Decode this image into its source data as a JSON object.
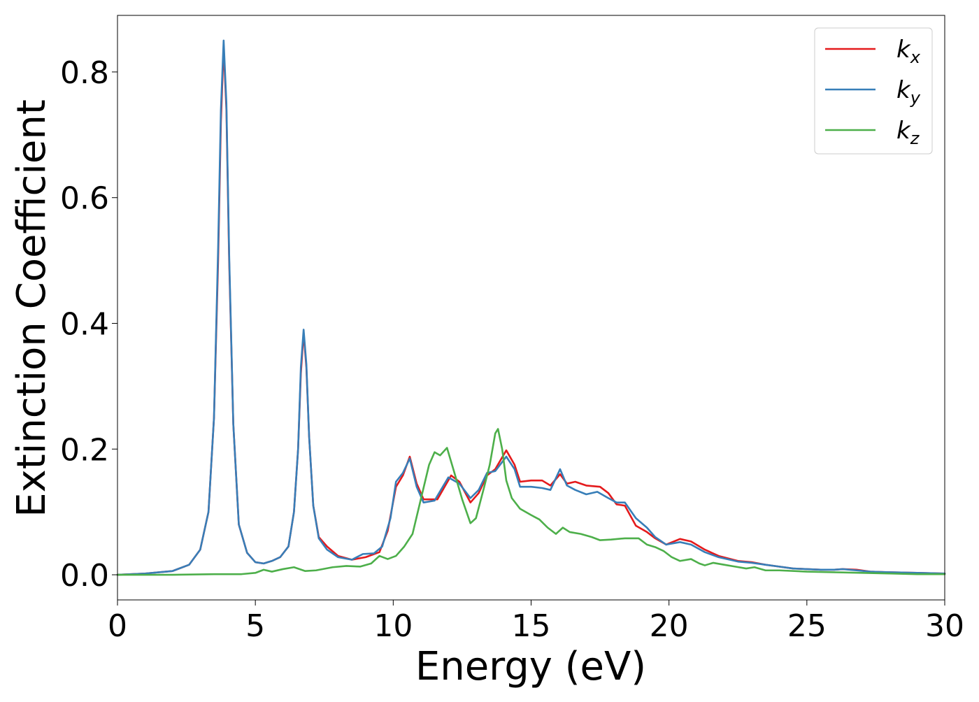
{
  "chart_data": {
    "type": "line",
    "title": "",
    "xlabel": "Energy (eV)",
    "ylabel": "Extinction Coefficient",
    "xlim": [
      0,
      30
    ],
    "ylim": [
      -0.04,
      0.89
    ],
    "x_ticks": [
      0,
      5,
      10,
      15,
      20,
      25,
      30
    ],
    "x_tick_labels": [
      "0",
      "5",
      "10",
      "15",
      "20",
      "25",
      "30"
    ],
    "y_ticks": [
      0.0,
      0.2,
      0.4,
      0.6,
      0.8
    ],
    "y_tick_labels": [
      "0.0",
      "0.2",
      "0.4",
      "0.6",
      "0.8"
    ],
    "grid": false,
    "legend_position": "top-right",
    "series": [
      {
        "name": "k_x",
        "label_base": "k",
        "label_sub": "x",
        "color": "#e41a1c",
        "points": [
          [
            0,
            0.0
          ],
          [
            1.0,
            0.002
          ],
          [
            2.0,
            0.006
          ],
          [
            2.6,
            0.016
          ],
          [
            3.0,
            0.04
          ],
          [
            3.3,
            0.1
          ],
          [
            3.5,
            0.25
          ],
          [
            3.65,
            0.5
          ],
          [
            3.75,
            0.72
          ],
          [
            3.85,
            0.84
          ],
          [
            3.95,
            0.74
          ],
          [
            4.05,
            0.5
          ],
          [
            4.2,
            0.24
          ],
          [
            4.4,
            0.08
          ],
          [
            4.7,
            0.035
          ],
          [
            5.0,
            0.02
          ],
          [
            5.3,
            0.018
          ],
          [
            5.6,
            0.022
          ],
          [
            5.9,
            0.028
          ],
          [
            6.2,
            0.045
          ],
          [
            6.4,
            0.1
          ],
          [
            6.55,
            0.2
          ],
          [
            6.65,
            0.32
          ],
          [
            6.75,
            0.385
          ],
          [
            6.85,
            0.33
          ],
          [
            6.95,
            0.22
          ],
          [
            7.1,
            0.11
          ],
          [
            7.3,
            0.06
          ],
          [
            7.6,
            0.045
          ],
          [
            8.0,
            0.03
          ],
          [
            8.5,
            0.024
          ],
          [
            9.0,
            0.028
          ],
          [
            9.5,
            0.036
          ],
          [
            9.8,
            0.07
          ],
          [
            10.1,
            0.14
          ],
          [
            10.35,
            0.158
          ],
          [
            10.6,
            0.188
          ],
          [
            10.85,
            0.145
          ],
          [
            11.1,
            0.12
          ],
          [
            11.6,
            0.12
          ],
          [
            12.1,
            0.158
          ],
          [
            12.4,
            0.148
          ],
          [
            12.8,
            0.115
          ],
          [
            13.1,
            0.13
          ],
          [
            13.4,
            0.158
          ],
          [
            13.7,
            0.168
          ],
          [
            14.1,
            0.198
          ],
          [
            14.4,
            0.175
          ],
          [
            14.6,
            0.148
          ],
          [
            15.0,
            0.15
          ],
          [
            15.4,
            0.15
          ],
          [
            15.7,
            0.142
          ],
          [
            16.05,
            0.16
          ],
          [
            16.3,
            0.145
          ],
          [
            16.6,
            0.148
          ],
          [
            17.0,
            0.142
          ],
          [
            17.5,
            0.14
          ],
          [
            17.8,
            0.13
          ],
          [
            18.1,
            0.112
          ],
          [
            18.4,
            0.11
          ],
          [
            18.8,
            0.078
          ],
          [
            19.2,
            0.068
          ],
          [
            19.5,
            0.058
          ],
          [
            19.9,
            0.048
          ],
          [
            20.4,
            0.057
          ],
          [
            20.8,
            0.053
          ],
          [
            21.3,
            0.04
          ],
          [
            21.8,
            0.03
          ],
          [
            22.5,
            0.022
          ],
          [
            23.0,
            0.02
          ],
          [
            23.5,
            0.016
          ],
          [
            24.0,
            0.013
          ],
          [
            24.5,
            0.01
          ],
          [
            25.0,
            0.009
          ],
          [
            25.5,
            0.008
          ],
          [
            26.0,
            0.008
          ],
          [
            26.3,
            0.009
          ],
          [
            26.8,
            0.008
          ],
          [
            27.3,
            0.005
          ],
          [
            28.0,
            0.004
          ],
          [
            29.0,
            0.003
          ],
          [
            30.0,
            0.002
          ]
        ]
      },
      {
        "name": "k_y",
        "label_base": "k",
        "label_sub": "y",
        "color": "#377eb8",
        "points": [
          [
            0,
            0.0
          ],
          [
            1.0,
            0.002
          ],
          [
            2.0,
            0.006
          ],
          [
            2.6,
            0.016
          ],
          [
            3.0,
            0.04
          ],
          [
            3.3,
            0.1
          ],
          [
            3.5,
            0.25
          ],
          [
            3.65,
            0.52
          ],
          [
            3.75,
            0.74
          ],
          [
            3.85,
            0.85
          ],
          [
            3.95,
            0.75
          ],
          [
            4.05,
            0.51
          ],
          [
            4.2,
            0.24
          ],
          [
            4.4,
            0.08
          ],
          [
            4.7,
            0.035
          ],
          [
            5.0,
            0.02
          ],
          [
            5.3,
            0.018
          ],
          [
            5.6,
            0.022
          ],
          [
            5.9,
            0.028
          ],
          [
            6.2,
            0.045
          ],
          [
            6.4,
            0.1
          ],
          [
            6.55,
            0.2
          ],
          [
            6.65,
            0.33
          ],
          [
            6.75,
            0.39
          ],
          [
            6.85,
            0.335
          ],
          [
            6.95,
            0.22
          ],
          [
            7.1,
            0.11
          ],
          [
            7.3,
            0.058
          ],
          [
            7.6,
            0.04
          ],
          [
            8.0,
            0.028
          ],
          [
            8.5,
            0.024
          ],
          [
            8.9,
            0.033
          ],
          [
            9.3,
            0.034
          ],
          [
            9.6,
            0.045
          ],
          [
            9.9,
            0.09
          ],
          [
            10.1,
            0.148
          ],
          [
            10.35,
            0.162
          ],
          [
            10.6,
            0.185
          ],
          [
            10.85,
            0.14
          ],
          [
            11.1,
            0.115
          ],
          [
            11.5,
            0.118
          ],
          [
            12.0,
            0.155
          ],
          [
            12.4,
            0.145
          ],
          [
            12.8,
            0.122
          ],
          [
            13.1,
            0.135
          ],
          [
            13.4,
            0.162
          ],
          [
            13.7,
            0.165
          ],
          [
            14.1,
            0.188
          ],
          [
            14.4,
            0.168
          ],
          [
            14.6,
            0.14
          ],
          [
            15.0,
            0.14
          ],
          [
            15.4,
            0.138
          ],
          [
            15.7,
            0.135
          ],
          [
            16.05,
            0.168
          ],
          [
            16.3,
            0.142
          ],
          [
            16.6,
            0.135
          ],
          [
            17.0,
            0.128
          ],
          [
            17.4,
            0.132
          ],
          [
            17.8,
            0.122
          ],
          [
            18.1,
            0.115
          ],
          [
            18.4,
            0.115
          ],
          [
            18.8,
            0.09
          ],
          [
            19.2,
            0.075
          ],
          [
            19.5,
            0.06
          ],
          [
            19.9,
            0.048
          ],
          [
            20.4,
            0.052
          ],
          [
            20.8,
            0.048
          ],
          [
            21.3,
            0.036
          ],
          [
            21.8,
            0.028
          ],
          [
            22.5,
            0.021
          ],
          [
            23.0,
            0.019
          ],
          [
            23.5,
            0.016
          ],
          [
            24.0,
            0.013
          ],
          [
            24.5,
            0.01
          ],
          [
            25.0,
            0.009
          ],
          [
            25.5,
            0.008
          ],
          [
            26.0,
            0.008
          ],
          [
            26.3,
            0.009
          ],
          [
            26.8,
            0.007
          ],
          [
            27.3,
            0.005
          ],
          [
            28.0,
            0.004
          ],
          [
            29.0,
            0.003
          ],
          [
            30.0,
            0.002
          ]
        ]
      },
      {
        "name": "k_z",
        "label_base": "k",
        "label_sub": "z",
        "color": "#4daf4a",
        "points": [
          [
            0,
            0.0
          ],
          [
            2.0,
            0.0
          ],
          [
            3.5,
            0.001
          ],
          [
            4.5,
            0.001
          ],
          [
            5.0,
            0.003
          ],
          [
            5.3,
            0.008
          ],
          [
            5.6,
            0.005
          ],
          [
            6.0,
            0.009
          ],
          [
            6.4,
            0.012
          ],
          [
            6.8,
            0.006
          ],
          [
            7.2,
            0.007
          ],
          [
            7.8,
            0.012
          ],
          [
            8.3,
            0.014
          ],
          [
            8.8,
            0.013
          ],
          [
            9.2,
            0.018
          ],
          [
            9.5,
            0.03
          ],
          [
            9.8,
            0.025
          ],
          [
            10.1,
            0.03
          ],
          [
            10.4,
            0.045
          ],
          [
            10.7,
            0.065
          ],
          [
            11.0,
            0.12
          ],
          [
            11.3,
            0.175
          ],
          [
            11.5,
            0.195
          ],
          [
            11.7,
            0.19
          ],
          [
            11.95,
            0.202
          ],
          [
            12.2,
            0.165
          ],
          [
            12.5,
            0.12
          ],
          [
            12.8,
            0.082
          ],
          [
            13.0,
            0.09
          ],
          [
            13.3,
            0.14
          ],
          [
            13.5,
            0.175
          ],
          [
            13.7,
            0.225
          ],
          [
            13.8,
            0.232
          ],
          [
            13.95,
            0.2
          ],
          [
            14.1,
            0.15
          ],
          [
            14.3,
            0.122
          ],
          [
            14.6,
            0.105
          ],
          [
            15.0,
            0.095
          ],
          [
            15.3,
            0.088
          ],
          [
            15.6,
            0.075
          ],
          [
            15.9,
            0.065
          ],
          [
            16.15,
            0.075
          ],
          [
            16.4,
            0.068
          ],
          [
            16.8,
            0.065
          ],
          [
            17.2,
            0.06
          ],
          [
            17.5,
            0.055
          ],
          [
            17.9,
            0.056
          ],
          [
            18.4,
            0.058
          ],
          [
            18.9,
            0.058
          ],
          [
            19.2,
            0.048
          ],
          [
            19.5,
            0.044
          ],
          [
            19.8,
            0.038
          ],
          [
            20.1,
            0.028
          ],
          [
            20.4,
            0.022
          ],
          [
            20.8,
            0.025
          ],
          [
            21.1,
            0.018
          ],
          [
            21.3,
            0.015
          ],
          [
            21.6,
            0.019
          ],
          [
            22.0,
            0.016
          ],
          [
            22.4,
            0.013
          ],
          [
            22.8,
            0.01
          ],
          [
            23.1,
            0.012
          ],
          [
            23.5,
            0.007
          ],
          [
            24.0,
            0.007
          ],
          [
            25.0,
            0.005
          ],
          [
            26.0,
            0.004
          ],
          [
            27.0,
            0.003
          ],
          [
            28.0,
            0.002
          ],
          [
            29.0,
            0.001
          ],
          [
            30.0,
            0.001
          ]
        ]
      }
    ]
  }
}
